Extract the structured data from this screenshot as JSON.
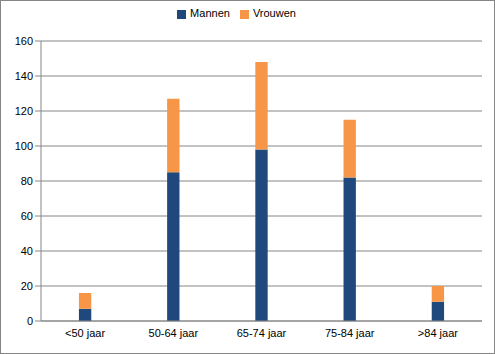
{
  "chart_data": {
    "type": "bar",
    "stacked": true,
    "categories": [
      "<50 jaar",
      "50-64 jaar",
      "65-74 jaar",
      "75-84 jaar",
      ">84 jaar"
    ],
    "series": [
      {
        "name": "Mannen",
        "color": "#1f497d",
        "values": [
          7,
          85,
          98,
          82,
          11
        ]
      },
      {
        "name": "Vrouwen",
        "color": "#f79646",
        "values": [
          9,
          42,
          50,
          33,
          9
        ]
      }
    ],
    "ylim": [
      0,
      160
    ],
    "yticks": [
      0,
      20,
      40,
      60,
      80,
      100,
      120,
      140,
      160
    ],
    "grid": true,
    "legend": "top"
  }
}
